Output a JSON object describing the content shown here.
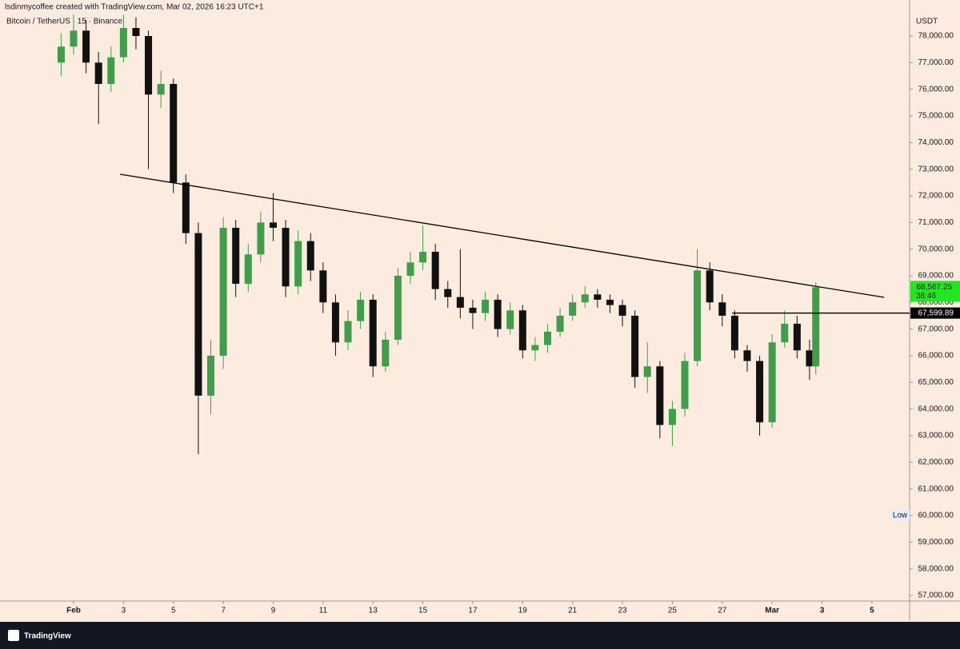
{
  "chart_data": {
    "type": "candlestick",
    "header": "lsdinmycoffee created with TradingView.com, Mar 02, 2026 16:23 UTC+1",
    "symbol": "Bitcoin / TetherUS · 15 · Binance",
    "currency": "USDT",
    "brand": "TradingView",
    "up_color": "#3f9e4a",
    "down_color": "#111111",
    "xlim": [
      -1.95,
      34.51
    ],
    "xticks": [
      {
        "value": 1,
        "label": "Feb"
      },
      3,
      5,
      7,
      9,
      11,
      13,
      15,
      17,
      19,
      21,
      23,
      25,
      27,
      {
        "value": 29,
        "label": "Mar"
      },
      {
        "value": 31,
        "label": "3"
      },
      {
        "value": 33,
        "label": "5"
      }
    ],
    "ylim": [
      56790,
      78810
    ],
    "yticks": [
      {
        "value": 57000,
        "label": "57,000.00"
      },
      {
        "value": 58000,
        "label": "58,000.00"
      },
      {
        "value": 59000,
        "label": "59,000.00"
      },
      {
        "value": 60000,
        "label": "60,000.00"
      },
      {
        "value": 61000,
        "label": "61,000.00"
      },
      {
        "value": 62000,
        "label": "62,000.00"
      },
      {
        "value": 63000,
        "label": "63,000.00"
      },
      {
        "value": 64000,
        "label": "64,000.00"
      },
      {
        "value": 65000,
        "label": "65,000.00"
      },
      {
        "value": 66000,
        "label": "66,000.00"
      },
      {
        "value": 67000,
        "label": "67,000.00"
      },
      {
        "value": 68000,
        "label": "68,000.00"
      },
      {
        "value": 69000,
        "label": "69,000.00"
      },
      {
        "value": 70000,
        "label": "70,000.00"
      },
      {
        "value": 71000,
        "label": "71,000.00"
      },
      {
        "value": 72000,
        "label": "72,000.00"
      },
      {
        "value": 73000,
        "label": "73,000.00"
      },
      {
        "value": 74000,
        "label": "74,000.00"
      },
      {
        "value": 75000,
        "label": "75,000.00"
      },
      {
        "value": 76000,
        "label": "76,000.00"
      },
      {
        "value": 77000,
        "label": "77,000.00"
      },
      {
        "value": 78000,
        "label": "78,000.00"
      }
    ],
    "grid": false,
    "candles": {
      "x": [
        0.5,
        1,
        1.5,
        2,
        2.5,
        3,
        3.5,
        4,
        4.5,
        5,
        5.5,
        6,
        6.5,
        7,
        7.5,
        8,
        8.5,
        9,
        9.5,
        10,
        10.5,
        11,
        11.5,
        12,
        12.5,
        13,
        13.5,
        14,
        14.5,
        15,
        15.5,
        16,
        16.5,
        17,
        17.5,
        18,
        18.5,
        19,
        19.5,
        20,
        20.5,
        21,
        21.5,
        22,
        22.5,
        23,
        23.5,
        24,
        24.5,
        25,
        25.5,
        26,
        26.5,
        27,
        27.5,
        28,
        28.5,
        29,
        29.5,
        30,
        30.5,
        30.75
      ],
      "open": [
        77000,
        77600,
        78200,
        77000,
        76200,
        77200,
        78300,
        78000,
        75800,
        76200,
        72500,
        70600,
        64500,
        66000,
        70800,
        68700,
        69800,
        71000,
        70800,
        68600,
        70300,
        69200,
        68000,
        66500,
        67300,
        68100,
        65600,
        66600,
        69000,
        69500,
        69900,
        68500,
        68200,
        67800,
        67600,
        68100,
        67000,
        67700,
        66200,
        66400,
        66900,
        67500,
        68000,
        68300,
        68100,
        67900,
        67500,
        65200,
        65600,
        63400,
        64000,
        65800,
        69200,
        68000,
        67500,
        66200,
        65800,
        63500,
        66500,
        67200,
        66200,
        65600
      ],
      "high": [
        78100,
        78800,
        78600,
        77400,
        77600,
        78800,
        78700,
        78200,
        76700,
        76400,
        72800,
        71000,
        66600,
        71200,
        71100,
        70200,
        71400,
        72100,
        71100,
        70700,
        70600,
        69500,
        68300,
        67700,
        68400,
        68300,
        66900,
        69300,
        69900,
        70900,
        70200,
        68800,
        70000,
        68100,
        68400,
        68300,
        68000,
        67900,
        66700,
        67200,
        67800,
        68300,
        68600,
        68500,
        68300,
        68100,
        67700,
        66500,
        65800,
        64300,
        66100,
        70000,
        69500,
        68300,
        67700,
        66400,
        66000,
        66800,
        67700,
        67500,
        66600,
        68750
      ],
      "low": [
        76500,
        77300,
        76600,
        74700,
        75900,
        77000,
        77500,
        73000,
        75300,
        72100,
        70200,
        62300,
        63800,
        65500,
        68200,
        68400,
        69500,
        70300,
        68200,
        68300,
        68800,
        67600,
        66000,
        66200,
        67000,
        65200,
        65400,
        66400,
        68700,
        69200,
        68100,
        67800,
        67400,
        67000,
        67300,
        66700,
        66800,
        65900,
        65800,
        66100,
        66700,
        67300,
        67800,
        67800,
        67600,
        67100,
        64800,
        64600,
        62900,
        62600,
        63700,
        65600,
        67700,
        67100,
        65900,
        65400,
        63000,
        63300,
        66300,
        65900,
        65100,
        65300
      ],
      "close": [
        77600,
        78200,
        77000,
        76200,
        77200,
        78300,
        78000,
        75800,
        76200,
        72500,
        70600,
        64500,
        66000,
        70800,
        68700,
        69800,
        71000,
        70800,
        68600,
        70300,
        69200,
        68000,
        66500,
        67300,
        68100,
        65600,
        66600,
        69000,
        69500,
        69900,
        68500,
        68200,
        67800,
        67600,
        68100,
        67000,
        67700,
        66200,
        66400,
        66900,
        67500,
        68000,
        68300,
        68100,
        67900,
        67500,
        65200,
        65600,
        63400,
        64000,
        65800,
        69200,
        68000,
        67500,
        66200,
        65800,
        63500,
        66500,
        67200,
        66200,
        65600,
        68567.25
      ]
    },
    "trendline": {
      "x": [
        2.86,
        33.49
      ],
      "y": [
        72810,
        68190
      ]
    },
    "hline": {
      "x_start": 27.4,
      "value": 67599.89,
      "label": "67,599.89"
    },
    "last_price": {
      "value": 68567.25,
      "label": "68,567.25",
      "countdown": "36:46"
    },
    "low_marker": {
      "value": 60000,
      "label": "Low"
    }
  }
}
